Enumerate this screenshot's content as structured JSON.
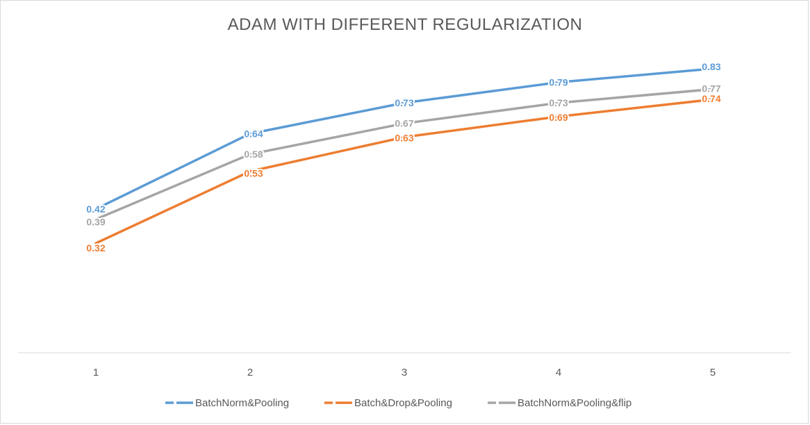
{
  "chart_data": {
    "type": "line",
    "title": "ADAM WITH DIFFERENT REGULARIZATION",
    "xlabel": "",
    "ylabel": "",
    "categories": [
      "1",
      "2",
      "3",
      "4",
      "5"
    ],
    "ylim": [
      0,
      1
    ],
    "grid": false,
    "legend_position": "bottom",
    "data_labels": true,
    "series": [
      {
        "name": "BatchNorm&Pooling",
        "color": "#5b9bd5",
        "values": [
          0.42,
          0.64,
          0.73,
          0.79,
          0.83
        ],
        "labels": [
          "0.42",
          "0.64",
          "0.73",
          "0.79",
          "0.83"
        ]
      },
      {
        "name": "Batch&Drop&Pooling",
        "color": "#ed7d31",
        "values": [
          0.32,
          0.53,
          0.63,
          0.69,
          0.74
        ],
        "labels": [
          "0.32",
          "0.53",
          "0.63",
          "0.69",
          "0.74"
        ]
      },
      {
        "name": "BatchNorm&Pooling&flip",
        "color": "#a5a5a5",
        "values": [
          0.39,
          0.58,
          0.67,
          0.73,
          0.77
        ],
        "labels": [
          "0.39",
          "0.58",
          "0.67",
          "0.73",
          "0.77"
        ]
      }
    ]
  }
}
